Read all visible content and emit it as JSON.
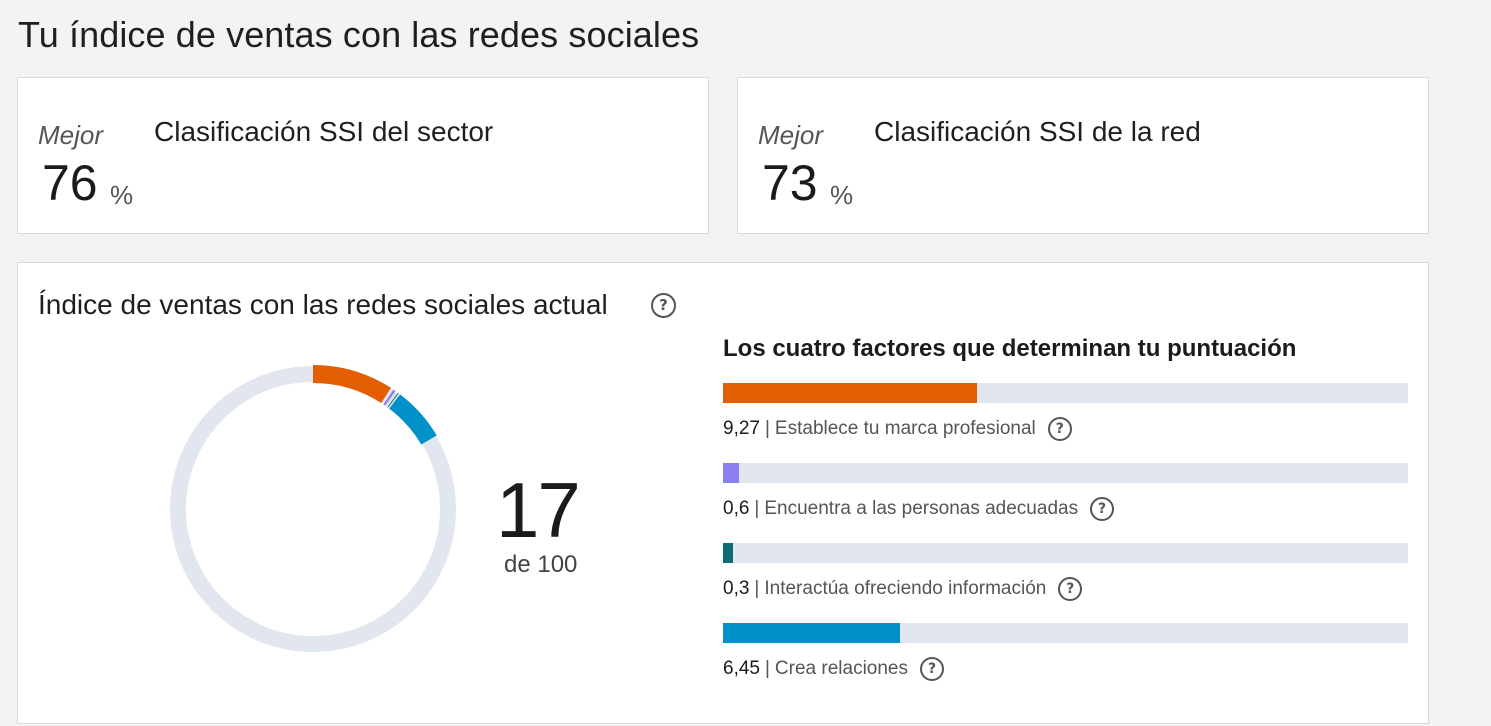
{
  "page": {
    "title": "Tu índice de ventas con las redes sociales"
  },
  "rankings": [
    {
      "label": "Mejor",
      "value": "76",
      "unit": "%",
      "title": "Clasificación SSI del sector"
    },
    {
      "label": "Mejor",
      "value": "73",
      "unit": "%",
      "title": "Clasificación SSI de la red"
    }
  ],
  "current": {
    "title": "Índice de ventas con las redes sociales actual",
    "help_icon": "question-circle-icon",
    "score": "17",
    "denominator": "de 100",
    "score_value": 17,
    "max_score": 100
  },
  "factors_title": "Los cuatro factores que determinan tu puntuación",
  "factors": [
    {
      "score": "9,27",
      "value": 9.27,
      "max": 25,
      "label": "Establece tu marca profesional",
      "color": "#e35d03"
    },
    {
      "score": "0,6",
      "value": 0.6,
      "max": 25,
      "label": "Encuentra a las personas adecuadas",
      "color": "#8a80f0"
    },
    {
      "score": "0,3",
      "value": 0.3,
      "max": 25,
      "label": "Interactúa ofreciendo información",
      "color": "#0f6b75"
    },
    {
      "score": "6,45",
      "value": 6.45,
      "max": 25,
      "label": "Crea relaciones",
      "color": "#0091ca"
    }
  ],
  "colors": {
    "track": "#e2e7ef",
    "background": "#f3f3f3",
    "card": "#ffffff"
  }
}
